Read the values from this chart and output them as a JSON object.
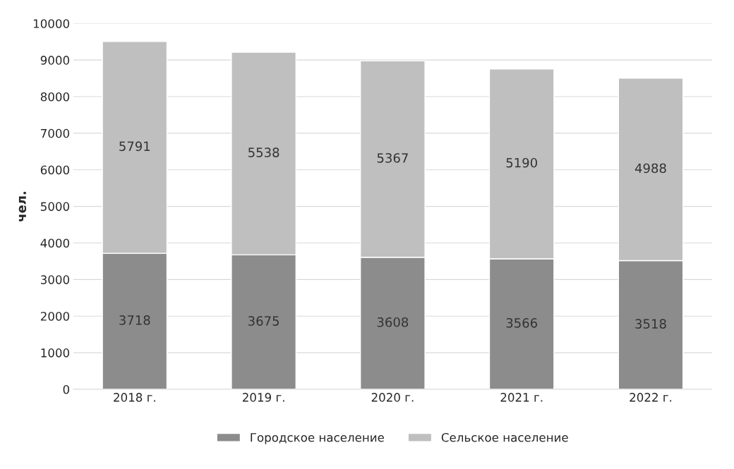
{
  "chart_data": {
    "type": "bar",
    "stacked": true,
    "ylabel": "чел.",
    "categories": [
      "2018 г.",
      "2019 г.",
      "2020 г.",
      "2021 г.",
      "2022 г."
    ],
    "series": [
      {
        "name": "Городское население",
        "color": "#8c8c8c",
        "values": [
          3718,
          3675,
          3608,
          3566,
          3518
        ]
      },
      {
        "name": "Сельское население",
        "color": "#bfbfbf",
        "values": [
          5791,
          5538,
          5367,
          5190,
          4988
        ]
      }
    ],
    "ylim": [
      0,
      10000
    ],
    "yticks": [
      0,
      1000,
      2000,
      3000,
      4000,
      5000,
      6000,
      7000,
      8000,
      9000,
      10000
    ],
    "grid": "y",
    "legend": "bottom",
    "data_labels": true
  }
}
